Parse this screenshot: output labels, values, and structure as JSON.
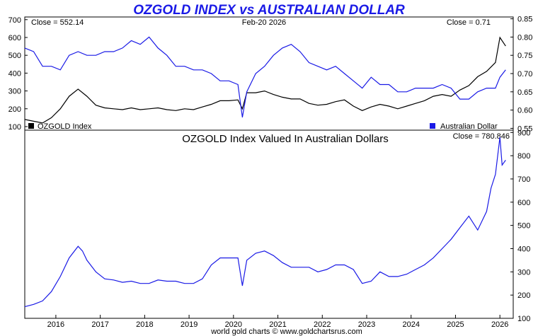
{
  "title": "OZGOLD INDEX vs AUSTRALIAN DOLLAR",
  "footer": "world gold charts © www.goldchartsrus.com",
  "colors": {
    "gold": "#000000",
    "aud": "#1a1ae6",
    "title": "#1a1ae6"
  },
  "chart_data": [
    {
      "type": "line",
      "panel": "top",
      "close_left": "Close = 552.14",
      "date": "Feb-20  2026",
      "close_right": "Close = 0.71",
      "legend_left": "OZGOLD Index",
      "legend_right": "Australian Dollar",
      "left_axis": {
        "ticks": [
          "700",
          "600",
          "500",
          "400",
          "300",
          "200",
          "100"
        ],
        "min": 80,
        "max": 715
      },
      "right_axis": {
        "ticks": [
          "0.85",
          "0.80",
          "0.75",
          "0.70",
          "0.65",
          "0.60",
          "0.55"
        ],
        "min": 0.545,
        "max": 0.855
      },
      "x": [
        2015.3,
        2015.5,
        2015.7,
        2015.9,
        2016.1,
        2016.3,
        2016.5,
        2016.7,
        2016.9,
        2017.1,
        2017.3,
        2017.5,
        2017.7,
        2017.9,
        2018.1,
        2018.3,
        2018.5,
        2018.7,
        2018.9,
        2019.1,
        2019.3,
        2019.5,
        2019.7,
        2019.9,
        2020.1,
        2020.2,
        2020.3,
        2020.5,
        2020.7,
        2020.9,
        2021.1,
        2021.3,
        2021.5,
        2021.7,
        2021.9,
        2022.1,
        2022.3,
        2022.5,
        2022.7,
        2022.9,
        2023.1,
        2023.3,
        2023.5,
        2023.7,
        2023.9,
        2024.1,
        2024.3,
        2024.5,
        2024.7,
        2024.9,
        2025.1,
        2025.3,
        2025.5,
        2025.7,
        2025.9,
        2026.0,
        2026.13
      ],
      "series": [
        {
          "name": "OZGOLD Index",
          "axis": "left",
          "values": [
            140,
            130,
            120,
            150,
            200,
            270,
            310,
            270,
            220,
            205,
            200,
            195,
            205,
            195,
            200,
            205,
            195,
            190,
            200,
            195,
            210,
            225,
            245,
            245,
            250,
            200,
            290,
            290,
            300,
            280,
            265,
            255,
            255,
            230,
            220,
            225,
            240,
            250,
            215,
            190,
            210,
            225,
            215,
            200,
            215,
            230,
            245,
            270,
            280,
            270,
            305,
            330,
            380,
            410,
            460,
            600,
            552
          ]
        },
        {
          "name": "Australian Dollar",
          "axis": "right",
          "values": [
            0.77,
            0.76,
            0.72,
            0.72,
            0.71,
            0.75,
            0.76,
            0.75,
            0.75,
            0.76,
            0.76,
            0.77,
            0.79,
            0.78,
            0.8,
            0.77,
            0.75,
            0.72,
            0.72,
            0.71,
            0.71,
            0.7,
            0.68,
            0.68,
            0.67,
            0.58,
            0.65,
            0.7,
            0.72,
            0.75,
            0.77,
            0.78,
            0.76,
            0.73,
            0.72,
            0.71,
            0.72,
            0.7,
            0.68,
            0.66,
            0.69,
            0.67,
            0.67,
            0.65,
            0.65,
            0.66,
            0.66,
            0.66,
            0.67,
            0.66,
            0.63,
            0.63,
            0.65,
            0.66,
            0.66,
            0.69,
            0.71
          ]
        }
      ]
    },
    {
      "type": "line",
      "panel": "bottom",
      "title": "OZGOLD Index Valued In Australian Dollars",
      "close_label": "Close = 780.846",
      "y_axis": {
        "ticks": [
          "900",
          "800",
          "700",
          "600",
          "500",
          "400",
          "300",
          "200",
          "100"
        ],
        "min": 100,
        "max": 910
      },
      "x_ticks": [
        "2016",
        "2017",
        "2018",
        "2019",
        "2020",
        "2021",
        "2022",
        "2023",
        "2024",
        "2025",
        "2026"
      ],
      "x_tick_values": [
        2016,
        2017,
        2018,
        2019,
        2020,
        2021,
        2022,
        2023,
        2024,
        2025,
        2026
      ],
      "x_range": [
        2015.3,
        2026.3
      ],
      "x": [
        2015.3,
        2015.5,
        2015.7,
        2015.9,
        2016.1,
        2016.3,
        2016.5,
        2016.6,
        2016.7,
        2016.9,
        2017.1,
        2017.3,
        2017.5,
        2017.7,
        2017.9,
        2018.1,
        2018.3,
        2018.5,
        2018.7,
        2018.9,
        2019.1,
        2019.3,
        2019.5,
        2019.7,
        2019.9,
        2020.1,
        2020.2,
        2020.3,
        2020.5,
        2020.7,
        2020.9,
        2021.1,
        2021.3,
        2021.5,
        2021.7,
        2021.9,
        2022.1,
        2022.3,
        2022.5,
        2022.7,
        2022.9,
        2023.1,
        2023.3,
        2023.5,
        2023.7,
        2023.9,
        2024.1,
        2024.3,
        2024.5,
        2024.7,
        2024.9,
        2025.1,
        2025.3,
        2025.5,
        2025.7,
        2025.8,
        2025.9,
        2026.0,
        2026.05,
        2026.13
      ],
      "series": [
        {
          "name": "OZGOLD Index in AUD",
          "values": [
            150,
            160,
            175,
            215,
            280,
            360,
            410,
            390,
            350,
            300,
            270,
            265,
            255,
            260,
            250,
            250,
            265,
            260,
            260,
            250,
            250,
            270,
            330,
            360,
            360,
            360,
            240,
            350,
            380,
            390,
            370,
            340,
            320,
            320,
            320,
            300,
            310,
            330,
            330,
            310,
            250,
            260,
            300,
            280,
            280,
            290,
            310,
            330,
            360,
            400,
            440,
            490,
            540,
            480,
            560,
            660,
            720,
            880,
            760,
            781
          ]
        }
      ]
    }
  ]
}
